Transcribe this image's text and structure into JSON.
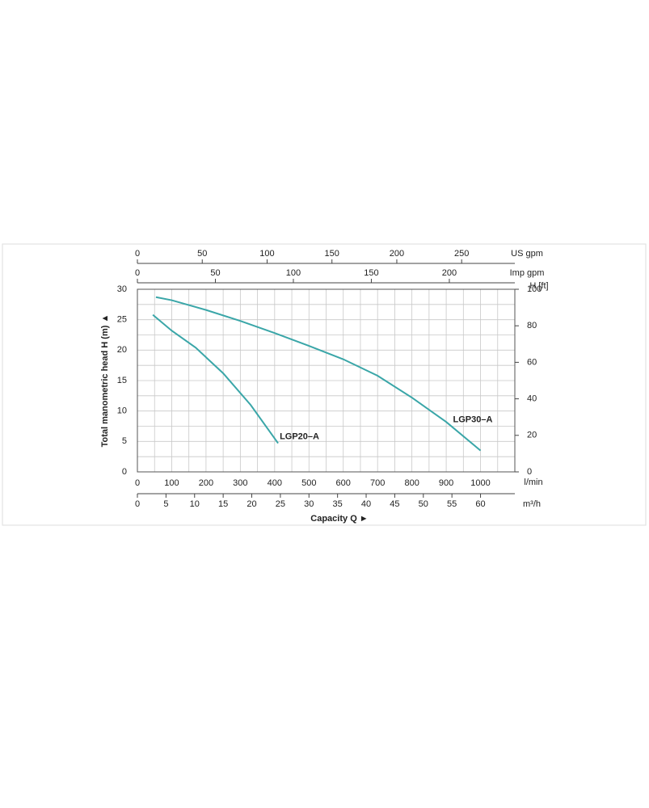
{
  "chart_data": {
    "type": "line",
    "y_label": "Total manometric head H (m) ▲",
    "x_label": "Capacity Q ►",
    "x_unit": "l/min",
    "xlim": [
      0,
      1100
    ],
    "xticks": [
      0,
      100,
      200,
      300,
      400,
      500,
      600,
      700,
      800,
      900,
      1000
    ],
    "ylim": [
      0,
      30
    ],
    "yticks": [
      0,
      5,
      10,
      15,
      20,
      25,
      30
    ],
    "y2_unit": "H [ft]",
    "y2lim": [
      0,
      100
    ],
    "y2ticks": [
      0,
      20,
      40,
      60,
      80,
      100
    ],
    "secondary_x_axes": [
      {
        "label": "US gpm",
        "position": "top",
        "lim": [
          0,
          291
        ],
        "ticks": [
          0,
          50,
          100,
          150,
          200,
          250
        ]
      },
      {
        "label": "Imp gpm",
        "position": "top",
        "lim": [
          0,
          242
        ],
        "ticks": [
          0,
          50,
          100,
          150,
          200
        ]
      },
      {
        "label": "m³/h",
        "position": "bottom",
        "lim": [
          0,
          66
        ],
        "ticks": [
          0,
          5,
          10,
          15,
          20,
          25,
          30,
          35,
          40,
          45,
          50,
          55,
          60
        ]
      }
    ],
    "grid": true,
    "series": [
      {
        "name": "LGP20–A",
        "color": "#3aa6a8",
        "x": [
          45,
          100,
          170,
          250,
          330,
          410
        ],
        "values": [
          25.8,
          23.2,
          20.4,
          16.2,
          11,
          4.7
        ]
      },
      {
        "name": "LGP30–A",
        "color": "#3aa6a8",
        "x": [
          54,
          100,
          200,
          300,
          400,
          500,
          600,
          700,
          800,
          900,
          1000
        ],
        "values": [
          28.7,
          28.2,
          26.6,
          24.8,
          22.8,
          20.7,
          18.5,
          15.8,
          12.2,
          8.2,
          3.5
        ]
      }
    ]
  }
}
